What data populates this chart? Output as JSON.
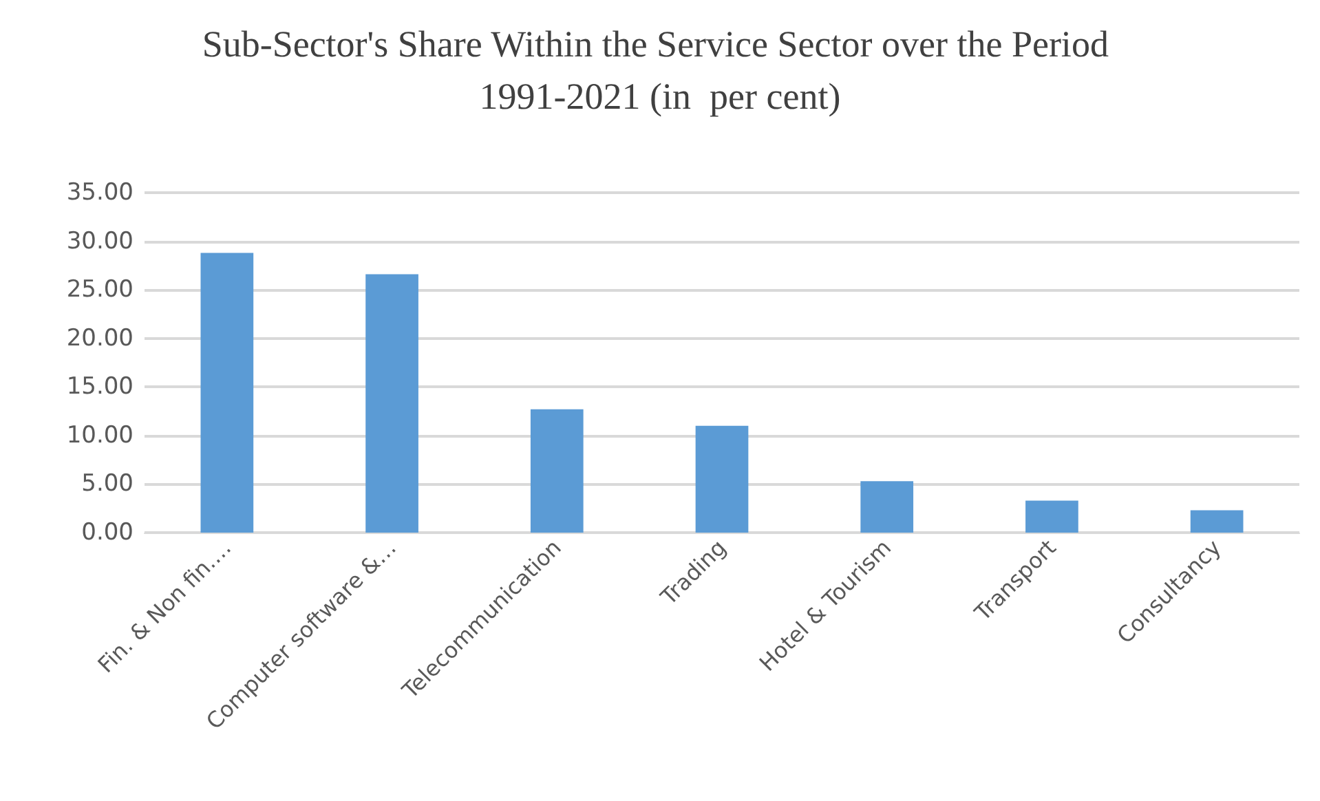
{
  "chart_data": {
    "type": "bar",
    "title": "Sub-Sector's Share Within the Service Sector over the Period 1991-2021 (in  per cent)",
    "categories": [
      "Fin. & Non fin.…",
      "Computer software &…",
      "Telecommunication",
      "Trading",
      "Hotel & Tourism",
      "Transport",
      "Consultancy"
    ],
    "values": [
      28.8,
      26.6,
      12.7,
      11.0,
      5.3,
      3.3,
      2.3
    ],
    "color": "#5b9bd5",
    "ylim": [
      0,
      35
    ],
    "yticks": [
      {
        "value": 0,
        "label": "0.00"
      },
      {
        "value": 5,
        "label": "5.00"
      },
      {
        "value": 10,
        "label": "10.00"
      },
      {
        "value": 15,
        "label": "15.00"
      },
      {
        "value": 20,
        "label": "20.00"
      },
      {
        "value": 25,
        "label": "25.00"
      },
      {
        "value": 30,
        "label": "30.00"
      },
      {
        "value": 35,
        "label": "35.00"
      }
    ],
    "grid": "y"
  }
}
